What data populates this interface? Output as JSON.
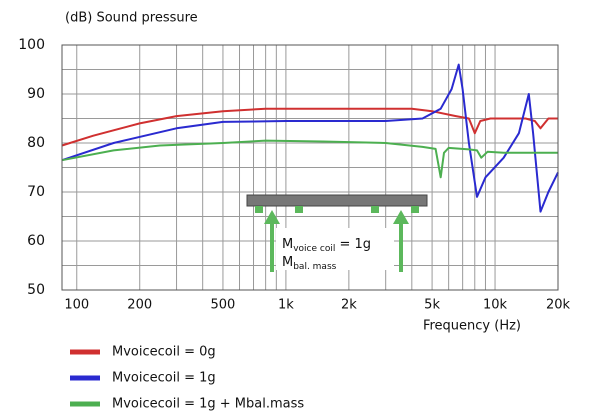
{
  "chart_data": {
    "type": "line",
    "title": "(dB)  Sound pressure",
    "x_label": "Frequency (Hz)",
    "xscale": "log",
    "xlim": [
      85,
      20000
    ],
    "ylim": [
      50,
      100
    ],
    "xticks": [
      100,
      200,
      500,
      {
        "value": 1000,
        "label": "1k"
      },
      {
        "value": 2000,
        "label": "2k"
      },
      {
        "value": 5000,
        "label": "5k"
      },
      {
        "value": 10000,
        "label": "10k"
      },
      {
        "value": 20000,
        "label": "20k"
      }
    ],
    "yticks": [
      50,
      60,
      70,
      80,
      90,
      100
    ],
    "xgrid": [
      300,
      400,
      600,
      700,
      800,
      900,
      3000,
      4000,
      6000,
      7000,
      8000,
      9000
    ],
    "ygrid": [
      55,
      65,
      75,
      85,
      95
    ],
    "grid": true,
    "series": [
      {
        "name": "Mvoicecoil = 0g",
        "color": "#d03030",
        "x": [
          85,
          120,
          200,
          300,
          500,
          800,
          2000,
          4000,
          5000,
          6500,
          7500,
          8000,
          8500,
          9500,
          12000,
          14000,
          15500,
          16500,
          18000,
          20000
        ],
        "values": [
          79.5,
          81.5,
          84,
          85.5,
          86.5,
          87,
          87,
          87,
          86.5,
          85.5,
          85,
          82,
          84.5,
          85,
          85,
          85,
          84.5,
          83,
          85,
          85
        ]
      },
      {
        "name": "Mvoicecoil = 1g",
        "color": "#2a2ad0",
        "x": [
          85,
          150,
          300,
          500,
          1000,
          3000,
          4500,
          5500,
          6200,
          6700,
          7000,
          7500,
          8200,
          9000,
          11000,
          13000,
          14500,
          15200,
          16500,
          18000,
          20000
        ],
        "values": [
          76.5,
          80,
          83,
          84.3,
          84.5,
          84.5,
          85,
          87,
          91,
          96,
          91,
          80,
          69,
          73,
          77,
          82,
          90,
          82,
          66,
          70,
          74
        ]
      },
      {
        "name": "Mvoicecoil = 1g + Mbal.mass",
        "color": "#4caf50",
        "x": [
          85,
          150,
          250,
          500,
          800,
          1500,
          3000,
          4500,
          5200,
          5500,
          5700,
          6000,
          7500,
          8200,
          8600,
          9200,
          11000,
          15000,
          20000
        ],
        "values": [
          76.5,
          78.5,
          79.5,
          80,
          80.5,
          80.3,
          80,
          79.2,
          78.8,
          73,
          78,
          79,
          78.7,
          78.5,
          77,
          78.2,
          78,
          78,
          78
        ]
      }
    ],
    "annotation": {
      "line1": [
        "M",
        "voice coil",
        " = 1g"
      ],
      "line2": [
        "M",
        "bal. mass"
      ]
    }
  }
}
